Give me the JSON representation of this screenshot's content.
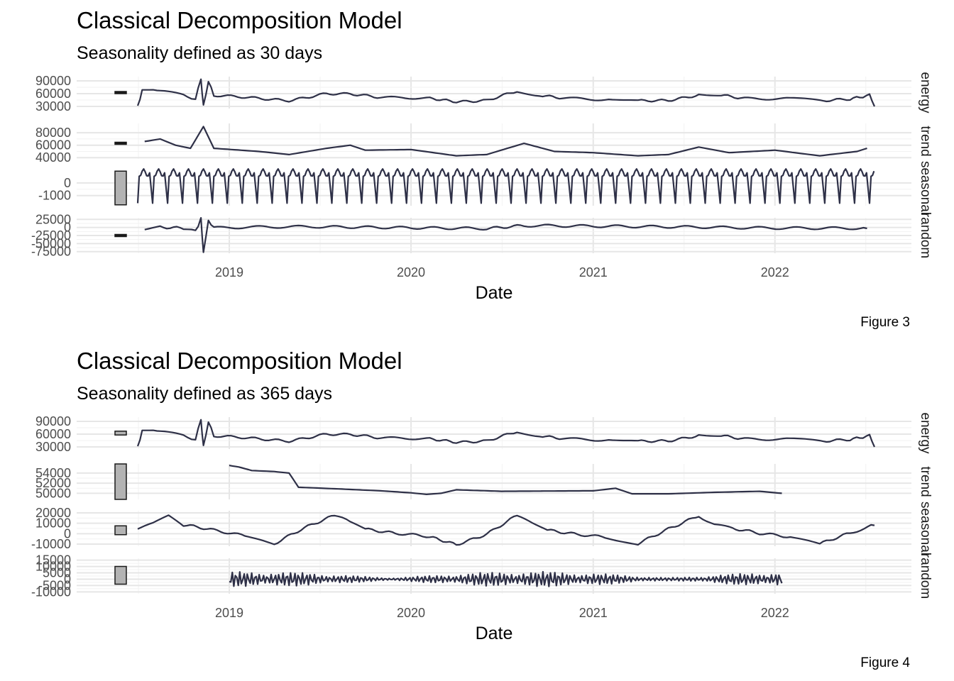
{
  "chart_data": [
    {
      "type": "line",
      "title": "Classical Decomposition Model",
      "subtitle": "Seasonality defined as 30 days",
      "caption": "Figure 3",
      "xlabel": "Date",
      "x_ticks": [
        "2019",
        "2020",
        "2021",
        "2022"
      ],
      "x_range": [
        "2018-07-01",
        "2022-07-20"
      ],
      "line_color": "#2e3047",
      "panels": [
        {
          "strip": "energy",
          "y_ticks": [
            "90000",
            "60000",
            "30000"
          ],
          "y_tick_values": [
            90000,
            60000,
            30000
          ],
          "ylim": [
            25000,
            100000
          ],
          "range_bar_frac": 0.03,
          "range_bar_center": 0.5,
          "series": {
            "x": [
              "2018-07-01",
              "2018-07-10",
              "2018-08-01",
              "2018-09-01",
              "2018-10-01",
              "2018-10-25",
              "2018-11-05",
              "2018-11-10",
              "2018-11-20",
              "2018-12-01",
              "2019-02-01",
              "2019-05-01",
              "2019-07-15",
              "2019-09-01",
              "2019-11-01",
              "2020-02-01",
              "2020-04-01",
              "2020-06-01",
              "2020-08-01",
              "2020-09-15",
              "2020-11-01",
              "2021-02-01",
              "2021-04-01",
              "2021-06-01",
              "2021-08-01",
              "2021-09-15",
              "2021-11-01",
              "2022-02-01",
              "2022-04-01",
              "2022-06-01",
              "2022-07-10",
              "2022-07-20"
            ],
            "y": [
              30000,
              70000,
              72000,
              62000,
              55000,
              50000,
              95000,
              30000,
              90000,
              55000,
              52000,
              45000,
              60000,
              58000,
              50000,
              48000,
              42000,
              45000,
              65000,
              58000,
              50000,
              47000,
              42000,
              45000,
              58000,
              56000,
              50000,
              48000,
              42000,
              46000,
              58000,
              30000
            ]
          }
        },
        {
          "strip": "trend",
          "y_ticks": [
            "80000",
            "60000",
            "40000"
          ],
          "y_tick_values": [
            80000,
            60000,
            40000
          ],
          "ylim": [
            38000,
            95000
          ],
          "range_bar_frac": 0.05,
          "range_bar_center": 0.56,
          "series": {
            "x": [
              "2018-07-15",
              "2018-08-15",
              "2018-09-15",
              "2018-10-15",
              "2018-11-10",
              "2018-12-01",
              "2019-03-01",
              "2019-05-01",
              "2019-07-15",
              "2019-09-01",
              "2019-10-01",
              "2020-01-01",
              "2020-04-01",
              "2020-06-01",
              "2020-08-15",
              "2020-10-15",
              "2021-01-01",
              "2021-04-01",
              "2021-06-01",
              "2021-08-01",
              "2021-10-01",
              "2022-01-01",
              "2022-04-01",
              "2022-06-15",
              "2022-07-05"
            ],
            "y": [
              66000,
              70000,
              60000,
              55000,
              90000,
              55000,
              50000,
              45000,
              55000,
              60000,
              52000,
              53000,
              43000,
              45000,
              63000,
              50000,
              48000,
              43000,
              45000,
              57000,
              48000,
              52000,
              43000,
              50000,
              55000
            ]
          }
        },
        {
          "strip": "seasonal",
          "y_ticks": [
            "0",
            "-1000"
          ],
          "y_tick_values": [
            0,
            -1000
          ],
          "ylim": [
            -1800,
            1000
          ],
          "range_bar_frac": 0.95,
          "range_bar_center": 0.5,
          "series": {
            "period_days": 30,
            "amplitude_hi": 800,
            "amplitude_lo": -1600,
            "x_start": "2018-07-01",
            "x_end": "2022-07-20"
          }
        },
        {
          "strip": "random",
          "y_ticks": [
            "25000",
            "0",
            "-25000",
            "-50000",
            "-75000"
          ],
          "y_tick_values": [
            25000,
            0,
            -25000,
            -50000,
            -75000
          ],
          "ylim": [
            -80000,
            30000
          ],
          "range_bar_frac": 0.03,
          "range_bar_center": 0.5,
          "series": {
            "x": [
              "2018-07-15",
              "2018-08-15",
              "2018-10-01",
              "2018-10-25",
              "2018-11-05",
              "2018-11-10",
              "2018-11-20",
              "2018-12-01",
              "2019-07-01",
              "2020-06-01",
              "2020-08-15",
              "2021-08-01",
              "2022-07-05"
            ],
            "y": [
              -5000,
              3000,
              -4000,
              -10000,
              25000,
              -75000,
              20000,
              -3000,
              2000,
              -2000,
              4000,
              3000,
              -3000
            ]
          }
        }
      ]
    },
    {
      "type": "line",
      "title": "Classical Decomposition Model",
      "subtitle": "Seasonality defined as 365 days",
      "caption": "Figure 4",
      "xlabel": "Date",
      "x_ticks": [
        "2019",
        "2020",
        "2021",
        "2022"
      ],
      "x_range": [
        "2018-07-01",
        "2022-07-20"
      ],
      "line_color": "#2e3047",
      "panels": [
        {
          "strip": "energy",
          "y_ticks": [
            "90000",
            "60000",
            "30000"
          ],
          "y_tick_values": [
            90000,
            60000,
            30000
          ],
          "ylim": [
            25000,
            100000
          ],
          "range_bar_frac": 0.12,
          "range_bar_center": 0.5,
          "series": {
            "x": [
              "2018-07-01",
              "2018-07-10",
              "2018-08-01",
              "2018-09-01",
              "2018-10-01",
              "2018-10-25",
              "2018-11-05",
              "2018-11-10",
              "2018-11-20",
              "2018-12-01",
              "2019-02-01",
              "2019-05-01",
              "2019-07-15",
              "2019-09-01",
              "2019-11-01",
              "2020-02-01",
              "2020-04-01",
              "2020-06-01",
              "2020-08-01",
              "2020-09-15",
              "2020-11-01",
              "2021-02-01",
              "2021-04-01",
              "2021-06-01",
              "2021-08-01",
              "2021-09-15",
              "2021-11-01",
              "2022-02-01",
              "2022-04-01",
              "2022-06-01",
              "2022-07-10",
              "2022-07-20"
            ],
            "y": [
              30000,
              70000,
              72000,
              62000,
              55000,
              50000,
              95000,
              30000,
              90000,
              55000,
              52000,
              45000,
              60000,
              58000,
              50000,
              48000,
              42000,
              45000,
              65000,
              58000,
              50000,
              47000,
              42000,
              45000,
              58000,
              56000,
              50000,
              48000,
              42000,
              46000,
              58000,
              30000
            ]
          }
        },
        {
          "strip": "trend",
          "y_ticks": [
            "54000",
            "52000",
            "50000"
          ],
          "y_tick_values": [
            54000,
            52000,
            50000
          ],
          "ylim": [
            48800,
            55800
          ],
          "range_bar_frac": 1.0,
          "range_bar_center": 0.5,
          "series": {
            "x": [
              "2019-01-01",
              "2019-01-20",
              "2019-02-15",
              "2019-04-01",
              "2019-05-01",
              "2019-05-20",
              "2019-08-01",
              "2019-11-01",
              "2020-01-01",
              "2020-02-01",
              "2020-03-01",
              "2020-04-01",
              "2020-07-01",
              "2021-01-01",
              "2021-02-15",
              "2021-03-20",
              "2021-06-01",
              "2021-09-01",
              "2021-12-01",
              "2022-01-15"
            ],
            "y": [
              55500,
              55200,
              54500,
              54300,
              54000,
              51200,
              50900,
              50500,
              50100,
              49800,
              50000,
              50700,
              50400,
              50500,
              51000,
              49900,
              49900,
              50200,
              50400,
              50000
            ]
          }
        },
        {
          "strip": "seasonal",
          "y_ticks": [
            "20000",
            "10000",
            "0",
            "-10000"
          ],
          "y_tick_values": [
            20000,
            10000,
            0,
            -10000
          ],
          "ylim": [
            -12000,
            22000
          ],
          "range_bar_frac": 0.25,
          "range_bar_center": 0.55,
          "series": {
            "x": [
              "2018-07-01",
              "2018-08-01",
              "2018-09-01",
              "2018-10-01",
              "2018-12-01",
              "2019-02-01",
              "2019-04-01",
              "2019-06-01",
              "2019-08-01",
              "2019-09-01",
              "2019-10-01",
              "2019-12-01",
              "2020-02-01",
              "2020-04-01",
              "2020-06-01",
              "2020-08-01",
              "2020-09-01",
              "2020-10-01",
              "2020-12-01",
              "2021-02-01",
              "2021-04-01",
              "2021-06-01",
              "2021-08-01",
              "2021-09-01",
              "2021-10-01",
              "2021-12-01",
              "2022-02-01",
              "2022-04-01",
              "2022-06-01",
              "2022-07-20"
            ],
            "y": [
              5000,
              10000,
              18000,
              8000,
              3000,
              -2000,
              -10000,
              5000,
              18000,
              10000,
              5000,
              0,
              -3000,
              -10000,
              0,
              17000,
              10000,
              3000,
              0,
              -3000,
              -10000,
              5000,
              18000,
              8000,
              5000,
              0,
              -3000,
              -10000,
              0,
              8000
            ]
          }
        },
        {
          "strip": "random",
          "y_ticks": [
            "15000",
            "10000",
            "5000",
            "0",
            "-5000",
            "-10000"
          ],
          "y_tick_values": [
            15000,
            10000,
            5000,
            0,
            -5000,
            -10000
          ],
          "ylim": [
            -11500,
            16500
          ],
          "range_bar_frac": 0.5,
          "range_bar_center": 0.48,
          "series": {
            "x_start": "2019-01-01",
            "x_end": "2022-01-15",
            "noise_amplitude": 6000
          }
        }
      ]
    }
  ]
}
